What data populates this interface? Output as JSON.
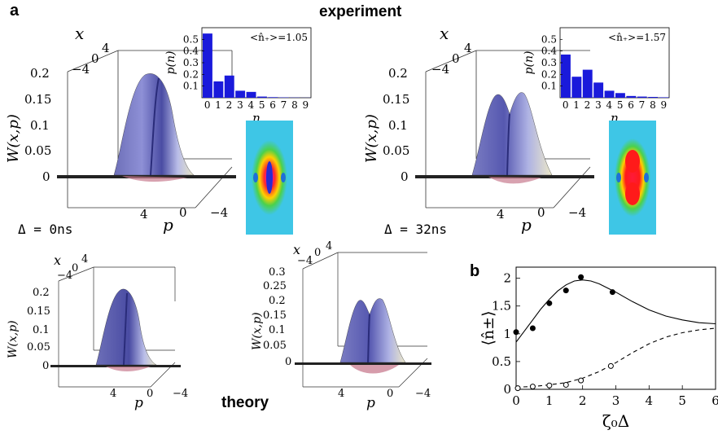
{
  "labels": {
    "panel_a": "a",
    "panel_b": "b",
    "experiment": "experiment",
    "theory": "theory",
    "w_label": "W(x,p)",
    "x_label": "x",
    "p_label": "p",
    "delta_0": "Δ = 0ns",
    "delta_32": "Δ = 32ns"
  },
  "surface_axes": {
    "x_ticks": [
      "−4",
      "0",
      "4"
    ],
    "p_ticks": [
      "4",
      "0",
      "−4"
    ],
    "w_ticks_large": [
      "0.2",
      "0.15",
      "0.1",
      "0.05",
      "0"
    ],
    "w_ticks_small": [
      "0.3",
      "0.25",
      "0.2",
      "0.15",
      "0.1",
      "0.05",
      "0"
    ]
  },
  "insets": [
    {
      "annotation": "<n̂₊>=1.05",
      "xlabel": "n",
      "ylabel": "p(n)",
      "yticks": [
        "0.5",
        "0.4",
        "0.3",
        "0.2",
        "0.1"
      ],
      "chart_data": {
        "type": "bar",
        "categories": [
          "0",
          "1",
          "2",
          "3",
          "4",
          "5",
          "6",
          "7",
          "8",
          "9"
        ],
        "values": [
          0.55,
          0.14,
          0.19,
          0.06,
          0.05,
          0.01,
          0.005,
          0.003,
          0.002,
          0.001
        ],
        "ylim": [
          0,
          0.6
        ],
        "color": "#1a1adb"
      }
    },
    {
      "annotation": "<n̂₊>=1.57",
      "xlabel": "n",
      "ylabel": "p(n)",
      "yticks": [
        "0.5",
        "0.4",
        "0.3",
        "0.2",
        "0.1"
      ],
      "chart_data": {
        "type": "bar",
        "categories": [
          "0",
          "1",
          "2",
          "3",
          "4",
          "5",
          "6",
          "7",
          "8",
          "9"
        ],
        "values": [
          0.37,
          0.18,
          0.24,
          0.13,
          0.06,
          0.04,
          0.015,
          0.01,
          0.007,
          0.004
        ],
        "ylim": [
          0,
          0.6
        ],
        "color": "#1a1adb"
      }
    }
  ],
  "chart_b": {
    "xlabel": "ζ₀Δ",
    "ylabel": "⟨n̂±⟩",
    "chart_data": {
      "type": "line",
      "xlim": [
        0,
        6
      ],
      "ylim": [
        0,
        2.2
      ],
      "xticks": [
        "0",
        "1",
        "2",
        "3",
        "4",
        "5",
        "6"
      ],
      "yticks": [
        "0",
        "0.5",
        "1",
        "1.5",
        "2"
      ],
      "series": [
        {
          "style": "solid",
          "x": [
            0,
            0.25,
            0.5,
            0.75,
            1,
            1.25,
            1.5,
            1.75,
            2,
            2.25,
            2.5,
            3,
            3.5,
            4,
            4.5,
            5,
            5.5,
            6
          ],
          "y": [
            0.85,
            1.05,
            1.25,
            1.45,
            1.62,
            1.77,
            1.88,
            1.95,
            1.97,
            1.95,
            1.9,
            1.75,
            1.58,
            1.43,
            1.32,
            1.25,
            1.2,
            1.18
          ]
        },
        {
          "style": "dashed",
          "x": [
            0,
            0.5,
            1,
            1.5,
            2,
            2.5,
            3,
            3.5,
            4,
            4.5,
            5,
            5.5,
            6
          ],
          "y": [
            0.04,
            0.05,
            0.08,
            0.12,
            0.2,
            0.32,
            0.48,
            0.66,
            0.82,
            0.94,
            1.02,
            1.07,
            1.1
          ]
        },
        {
          "style": "filled-dots",
          "x": [
            0,
            0.5,
            1,
            1.5,
            1.95,
            2.9
          ],
          "y": [
            1.03,
            1.1,
            1.55,
            1.78,
            2.02,
            1.75
          ]
        },
        {
          "style": "open-dots",
          "x": [
            0.05,
            0.5,
            1.0,
            1.5,
            1.95,
            2.85
          ],
          "y": [
            0.02,
            0.05,
            0.07,
            0.08,
            0.16,
            0.42
          ]
        }
      ]
    }
  }
}
